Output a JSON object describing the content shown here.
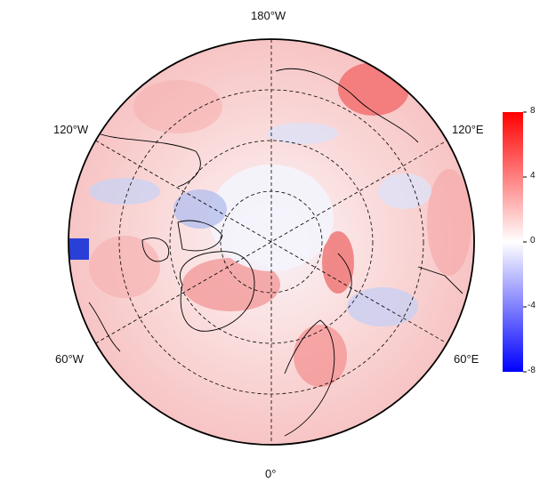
{
  "labels": {
    "top": "180°W",
    "bottom": "0°",
    "upper_left": "120°W",
    "upper_right": "120°E",
    "lower_left": "60°W",
    "lower_right": "60°E"
  },
  "colorbar": {
    "ticks": [
      "8",
      "4",
      "0",
      "-4",
      "-8"
    ],
    "values": [
      8,
      4,
      0,
      -4,
      -8
    ],
    "min": -8,
    "max": 8,
    "colors": {
      "low": "#0000ff",
      "mid": "#ffffff",
      "high": "#ff0000"
    }
  },
  "map": {
    "projection": "north-polar-stereographic",
    "graticule": "dashed",
    "colors": {
      "land_outline": "#000000",
      "background": "#ffffff"
    }
  }
}
